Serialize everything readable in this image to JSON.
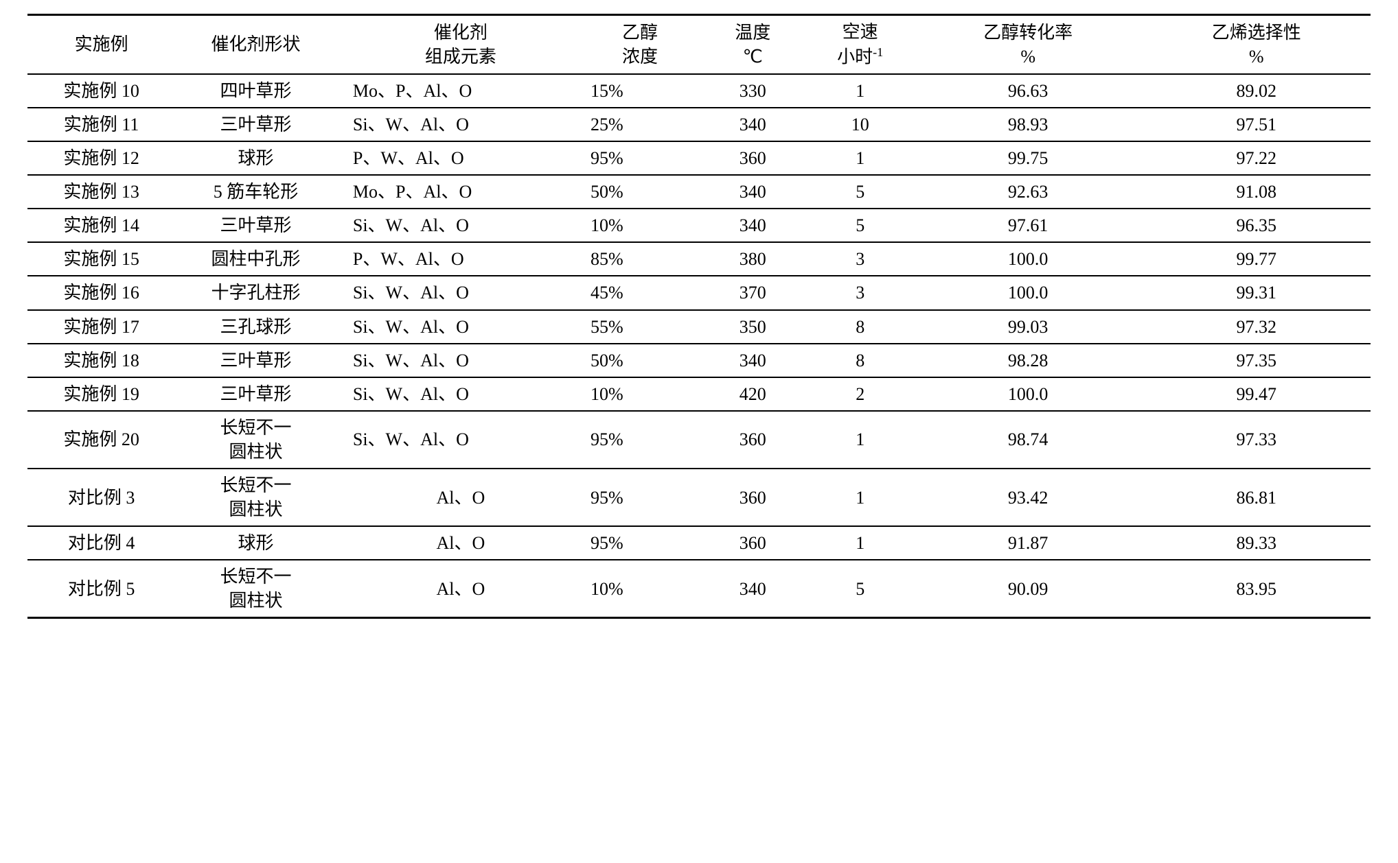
{
  "table": {
    "background_color": "#ffffff",
    "text_color": "#000000",
    "border_color": "#000000",
    "font_size_pt": 20,
    "border_width_outer": 3,
    "border_width_inner": 2,
    "columns": [
      {
        "key": "example",
        "line1": "实施例",
        "line2": "",
        "align": "center",
        "width_pct": 11
      },
      {
        "key": "shape",
        "line1": "催化剂形状",
        "line2": "",
        "align": "center",
        "width_pct": 12
      },
      {
        "key": "elements",
        "line1": "催化剂",
        "line2": "组成元素",
        "align": "left",
        "width_pct": 18
      },
      {
        "key": "conc",
        "line1": "乙醇",
        "line2": "浓度",
        "align": "left",
        "width_pct": 9
      },
      {
        "key": "temp",
        "line1": "温度",
        "line2": "℃",
        "align": "center",
        "width_pct": 8
      },
      {
        "key": "sv",
        "line1": "空速",
        "line2": "小时",
        "sup": "-1",
        "align": "center",
        "width_pct": 8
      },
      {
        "key": "conv",
        "line1": "乙醇转化率",
        "line2": "%",
        "align": "center",
        "width_pct": 17
      },
      {
        "key": "sel",
        "line1": "乙烯选择性",
        "line2": "%",
        "align": "center",
        "width_pct": 17
      }
    ],
    "rows": [
      {
        "example": "实施例 10",
        "shape": "四叶草形",
        "elements": "Mo、P、Al、O",
        "conc": "15%",
        "temp": "330",
        "sv": "1",
        "conv": "96.63",
        "sel": "89.02"
      },
      {
        "example": "实施例 11",
        "shape": "三叶草形",
        "elements": "Si、W、Al、O",
        "conc": "25%",
        "temp": "340",
        "sv": "10",
        "conv": "98.93",
        "sel": "97.51"
      },
      {
        "example": "实施例 12",
        "shape": "球形",
        "elements": "P、W、Al、O",
        "conc": "95%",
        "temp": "360",
        "sv": "1",
        "conv": "99.75",
        "sel": "97.22"
      },
      {
        "example": "实施例 13",
        "shape": "5 筋车轮形",
        "elements": "Mo、P、Al、O",
        "conc": "50%",
        "temp": "340",
        "sv": "5",
        "conv": "92.63",
        "sel": "91.08"
      },
      {
        "example": "实施例 14",
        "shape": "三叶草形",
        "elements": "Si、W、Al、O",
        "conc": "10%",
        "temp": "340",
        "sv": "5",
        "conv": "97.61",
        "sel": "96.35"
      },
      {
        "example": "实施例 15",
        "shape": "圆柱中孔形",
        "elements": "P、W、Al、O",
        "conc": "85%",
        "temp": "380",
        "sv": "3",
        "conv": "100.0",
        "sel": "99.77"
      },
      {
        "example": "实施例 16",
        "shape": "十字孔柱形",
        "elements": "Si、W、Al、O",
        "conc": "45%",
        "temp": "370",
        "sv": "3",
        "conv": "100.0",
        "sel": "99.31"
      },
      {
        "example": "实施例 17",
        "shape": "三孔球形",
        "elements": "Si、W、Al、O",
        "conc": "55%",
        "temp": "350",
        "sv": "8",
        "conv": "99.03",
        "sel": "97.32"
      },
      {
        "example": "实施例 18",
        "shape": "三叶草形",
        "elements": "Si、W、Al、O",
        "conc": "50%",
        "temp": "340",
        "sv": "8",
        "conv": "98.28",
        "sel": "97.35"
      },
      {
        "example": "实施例 19",
        "shape": "三叶草形",
        "elements": "Si、W、Al、O",
        "conc": "10%",
        "temp": "420",
        "sv": "2",
        "conv": "100.0",
        "sel": "99.47"
      },
      {
        "example": "实施例 20",
        "shape": "长短不一\n圆柱状",
        "elements": "Si、W、Al、O",
        "conc": "95%",
        "temp": "360",
        "sv": "1",
        "conv": "98.74",
        "sel": "97.33"
      },
      {
        "example": "对比例 3",
        "shape": "长短不一\n圆柱状",
        "elements": "Al、O",
        "conc": "95%",
        "temp": "360",
        "sv": "1",
        "conv": "93.42",
        "sel": "86.81"
      },
      {
        "example": "对比例 4",
        "shape": "球形",
        "elements": "Al、O",
        "conc": "95%",
        "temp": "360",
        "sv": "1",
        "conv": "91.87",
        "sel": "89.33"
      },
      {
        "example": "对比例 5",
        "shape": "长短不一\n圆柱状",
        "elements": "Al、O",
        "conc": "10%",
        "temp": "340",
        "sv": "5",
        "conv": "90.09",
        "sel": "83.95"
      }
    ]
  }
}
